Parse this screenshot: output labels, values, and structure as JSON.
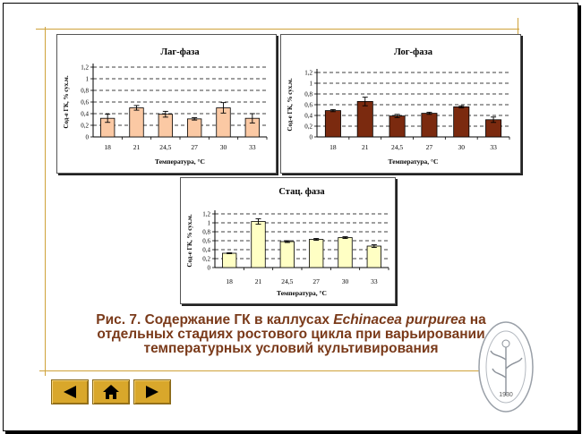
{
  "chart_data": [
    {
      "type": "bar",
      "title": "Лаг-фаза",
      "xlabel": "Температура, °С",
      "ylabel": "Сод-е ГК, % сух.м.",
      "categories": [
        "18",
        "21",
        "24,5",
        "27",
        "30",
        "33"
      ],
      "values": [
        0.32,
        0.5,
        0.39,
        0.31,
        0.5,
        0.32
      ],
      "errors": [
        0.07,
        0.04,
        0.05,
        0.02,
        0.09,
        0.08
      ],
      "ylim": [
        0,
        1.2
      ],
      "yticks": [
        "0",
        "0,2",
        "0,4",
        "0,6",
        "0,8",
        "1",
        "1,2"
      ],
      "color": "#fbc9a4",
      "grid": true
    },
    {
      "type": "bar",
      "title": "Лог-фаза",
      "xlabel": "Температура, °С",
      "ylabel": "Сод-е ГК, % сух.м.",
      "categories": [
        "18",
        "21",
        "24,5",
        "27",
        "30",
        "33"
      ],
      "values": [
        0.49,
        0.66,
        0.39,
        0.44,
        0.56,
        0.32
      ],
      "errors": [
        0.02,
        0.08,
        0.03,
        0.02,
        0.02,
        0.05
      ],
      "ylim": [
        0,
        1.2
      ],
      "yticks": [
        "0",
        "0,2",
        "0,4",
        "0,6",
        "0,8",
        "1",
        "1,2"
      ],
      "color": "#7b2a0f",
      "grid": true
    },
    {
      "type": "bar",
      "title": "Стац. фаза",
      "xlabel": "Температура, °С",
      "ylabel": "Сод-е ГК, % сух.м.",
      "categories": [
        "18",
        "21",
        "24,5",
        "27",
        "30",
        "33"
      ],
      "values": [
        0.32,
        1.03,
        0.58,
        0.63,
        0.67,
        0.48
      ],
      "errors": [
        0.01,
        0.06,
        0.02,
        0.02,
        0.02,
        0.03
      ],
      "ylim": [
        0,
        1.2
      ],
      "yticks": [
        "0",
        "0,2",
        "0,4",
        "0,6",
        "0,8",
        "1",
        "1,2"
      ],
      "color": "#ffffc4",
      "grid": true
    }
  ],
  "caption": {
    "line1_prefix": "Рис. 7.  Содержание ГК в каллусах ",
    "line1_species": "Echinacea purpurea",
    "line1_suffix": " на",
    "line2": "отдельных стадиях ростового цикла при варьировании",
    "line3": "температурных условий культивирования"
  },
  "seal": {
    "year": "1930"
  },
  "nav": {
    "prev": "arrow-left-icon",
    "home": "home-icon",
    "next": "arrow-right-icon"
  },
  "colors": {
    "accent": "#cfa23a",
    "caption": "#7a3a1a",
    "button": "#d9a72b"
  }
}
